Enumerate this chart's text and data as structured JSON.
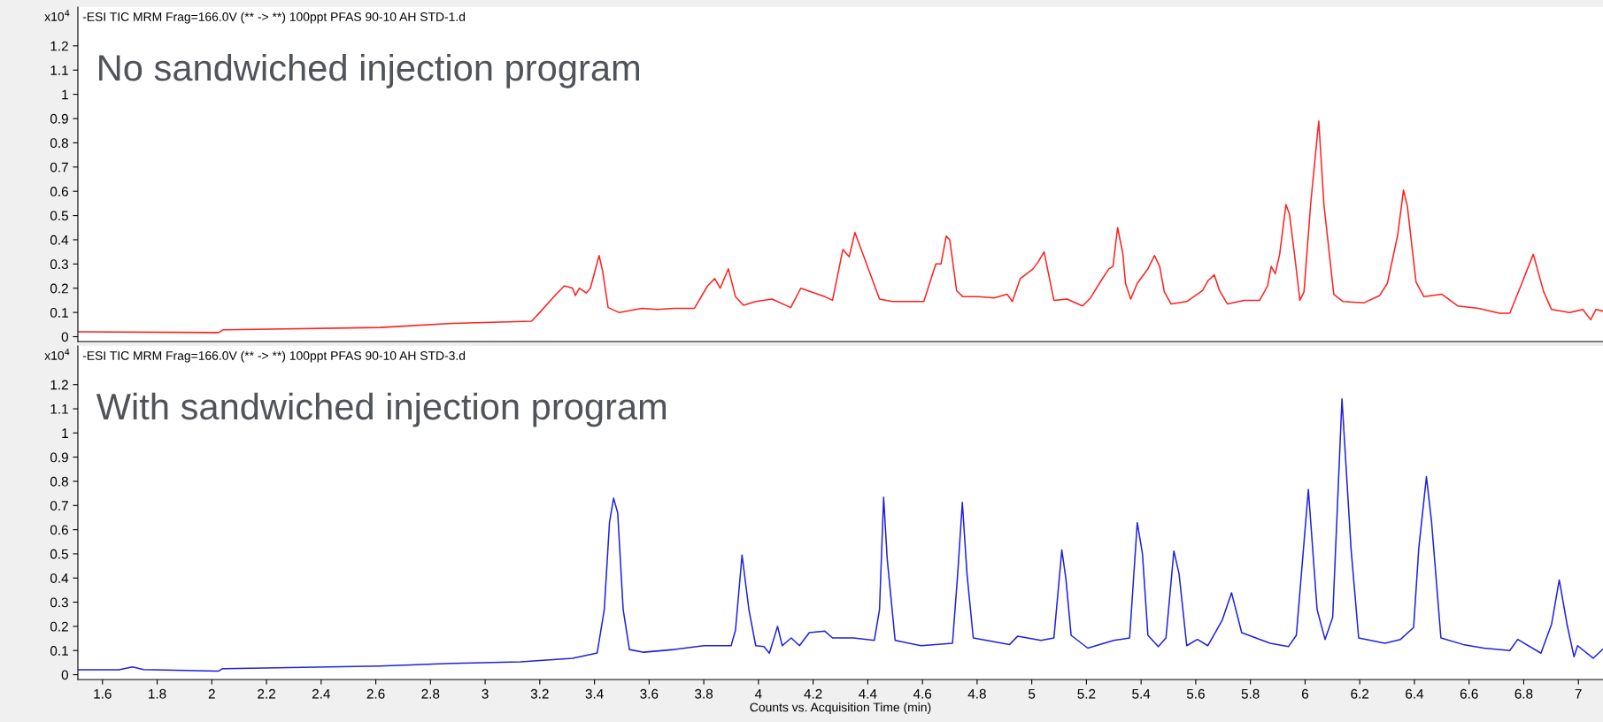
{
  "chart_data": [
    {
      "type": "line",
      "title": "-ESI TIC MRM Frag=166.0V (** -> **) 100ppt PFAS 90-10 AH STD-1.d",
      "annotations": [
        "x10$^{4}$",
        "No sandwiched injection program"
      ],
      "xlim": [
        1.51,
        7.09
      ],
      "ylim": [
        -0.02,
        1.36
      ],
      "yticks": [
        0,
        0.1,
        0.2,
        0.3,
        0.4,
        0.5,
        0.6,
        0.7,
        0.8,
        0.9,
        1,
        1.1,
        1.2
      ],
      "tick_labels": "y",
      "grid": false,
      "series": [
        {
          "color": "#ff2020",
          "x": [
            1.51,
            2.025,
            2.04,
            2.616,
            2.882,
            3.17,
            3.2,
            3.26,
            3.29,
            3.32,
            3.33,
            3.345,
            3.37,
            3.385,
            3.417,
            3.43,
            3.45,
            3.49,
            3.573,
            3.63,
            3.69,
            3.766,
            3.814,
            3.84,
            3.86,
            3.89,
            3.916,
            3.945,
            3.99,
            4.05,
            4.118,
            4.155,
            4.243,
            4.271,
            4.309,
            4.332,
            4.353,
            4.443,
            4.49,
            4.557,
            4.605,
            4.649,
            4.668,
            4.687,
            4.7,
            4.725,
            4.748,
            4.805,
            4.862,
            4.91,
            4.929,
            4.958,
            5.005,
            5.024,
            5.045,
            5.081,
            5.129,
            5.186,
            5.215,
            5.253,
            5.282,
            5.297,
            5.314,
            5.333,
            5.343,
            5.362,
            5.386,
            5.425,
            5.449,
            5.468,
            5.485,
            5.51,
            5.567,
            5.625,
            5.644,
            5.668,
            5.687,
            5.716,
            5.777,
            5.834,
            5.863,
            5.876,
            5.891,
            5.907,
            5.93,
            5.943,
            5.964,
            5.981,
            5.996,
            6.021,
            6.05,
            6.069,
            6.105,
            6.139,
            6.216,
            6.273,
            6.301,
            6.339,
            6.36,
            6.374,
            6.406,
            6.435,
            6.501,
            6.558,
            6.635,
            6.711,
            6.749,
            6.793,
            6.835,
            6.873,
            6.902,
            6.968,
            7.016,
            7.045,
            7.064,
            7.088
          ],
          "values": [
            0.02,
            0.017,
            0.028,
            0.038,
            0.055,
            0.064,
            0.1,
            0.175,
            0.21,
            0.2,
            0.17,
            0.2,
            0.18,
            0.2,
            0.335,
            0.27,
            0.12,
            0.1,
            0.117,
            0.112,
            0.117,
            0.117,
            0.21,
            0.24,
            0.2,
            0.28,
            0.165,
            0.13,
            0.145,
            0.155,
            0.12,
            0.2,
            0.165,
            0.15,
            0.36,
            0.33,
            0.43,
            0.155,
            0.145,
            0.145,
            0.145,
            0.3,
            0.3,
            0.415,
            0.4,
            0.19,
            0.165,
            0.165,
            0.16,
            0.175,
            0.145,
            0.24,
            0.28,
            0.31,
            0.35,
            0.15,
            0.155,
            0.127,
            0.16,
            0.23,
            0.28,
            0.29,
            0.45,
            0.345,
            0.22,
            0.155,
            0.22,
            0.28,
            0.335,
            0.29,
            0.185,
            0.135,
            0.145,
            0.19,
            0.23,
            0.255,
            0.19,
            0.135,
            0.15,
            0.15,
            0.21,
            0.29,
            0.26,
            0.34,
            0.545,
            0.505,
            0.315,
            0.15,
            0.185,
            0.555,
            0.89,
            0.545,
            0.175,
            0.145,
            0.14,
            0.17,
            0.22,
            0.42,
            0.605,
            0.54,
            0.225,
            0.165,
            0.175,
            0.127,
            0.117,
            0.097,
            0.097,
            0.22,
            0.34,
            0.185,
            0.112,
            0.1,
            0.112,
            0.07,
            0.112,
            0.106
          ]
        }
      ]
    },
    {
      "type": "line",
      "title": "-ESI TIC MRM Frag=166.0V (** -> **) 100ppt PFAS 90-10 AH STD-3.d",
      "xlabel": "Counts vs. Acquisition Time (min)",
      "annotations": [
        "x10$^{4}$",
        "With sandwiched injection program"
      ],
      "xlim": [
        1.51,
        7.09
      ],
      "xticks": [
        1.6,
        1.8,
        2,
        2.2,
        2.4,
        2.6,
        2.8,
        3,
        3.2,
        3.4,
        3.6,
        3.8,
        4,
        4.2,
        4.4,
        4.6,
        4.8,
        5,
        5.2,
        5.4,
        5.6,
        5.8,
        6,
        6.2,
        6.4,
        6.6,
        6.8,
        7
      ],
      "ylim": [
        -0.02,
        1.36
      ],
      "yticks": [
        0,
        0.1,
        0.2,
        0.3,
        0.4,
        0.5,
        0.6,
        0.7,
        0.8,
        0.9,
        1,
        1.1,
        1.2
      ],
      "grid": false,
      "series": [
        {
          "color": "#2020e0",
          "x": [
            1.51,
            1.66,
            1.71,
            1.75,
            2.025,
            2.04,
            2.616,
            2.882,
            3.13,
            3.32,
            3.41,
            3.436,
            3.455,
            3.47,
            3.485,
            3.505,
            3.528,
            3.58,
            3.69,
            3.8,
            3.9,
            3.916,
            3.94,
            3.965,
            3.99,
            4.02,
            4.04,
            4.07,
            4.087,
            4.12,
            4.15,
            4.186,
            4.243,
            4.271,
            4.348,
            4.424,
            4.443,
            4.458,
            4.471,
            4.5,
            4.595,
            4.71,
            4.729,
            4.746,
            4.763,
            4.786,
            4.919,
            4.948,
            5.034,
            5.081,
            5.11,
            5.125,
            5.144,
            5.205,
            5.3,
            5.358,
            5.386,
            5.405,
            5.425,
            5.463,
            5.491,
            5.52,
            5.539,
            5.567,
            5.606,
            5.644,
            5.697,
            5.731,
            5.768,
            5.872,
            5.939,
            5.968,
            6.012,
            6.044,
            6.073,
            6.101,
            6.135,
            6.168,
            6.196,
            6.292,
            6.349,
            6.397,
            6.416,
            6.444,
            6.463,
            6.497,
            6.578,
            6.654,
            6.749,
            6.778,
            6.863,
            6.902,
            6.93,
            6.959,
            6.984,
            6.997,
            7.054,
            7.088
          ],
          "values": [
            0.02,
            0.02,
            0.032,
            0.021,
            0.015,
            0.025,
            0.036,
            0.047,
            0.053,
            0.068,
            0.09,
            0.27,
            0.63,
            0.73,
            0.67,
            0.27,
            0.104,
            0.093,
            0.104,
            0.12,
            0.12,
            0.184,
            0.495,
            0.27,
            0.12,
            0.116,
            0.089,
            0.2,
            0.12,
            0.152,
            0.12,
            0.174,
            0.18,
            0.152,
            0.152,
            0.142,
            0.27,
            0.734,
            0.48,
            0.142,
            0.12,
            0.13,
            0.417,
            0.713,
            0.417,
            0.152,
            0.125,
            0.159,
            0.142,
            0.152,
            0.516,
            0.396,
            0.163,
            0.11,
            0.142,
            0.152,
            0.629,
            0.5,
            0.163,
            0.116,
            0.152,
            0.512,
            0.417,
            0.12,
            0.146,
            0.12,
            0.226,
            0.339,
            0.174,
            0.13,
            0.116,
            0.163,
            0.766,
            0.269,
            0.146,
            0.237,
            1.141,
            0.523,
            0.152,
            0.13,
            0.146,
            0.195,
            0.523,
            0.819,
            0.629,
            0.152,
            0.125,
            0.11,
            0.1,
            0.146,
            0.089,
            0.21,
            0.392,
            0.205,
            0.074,
            0.12,
            0.068,
            0.104
          ]
        }
      ]
    }
  ]
}
